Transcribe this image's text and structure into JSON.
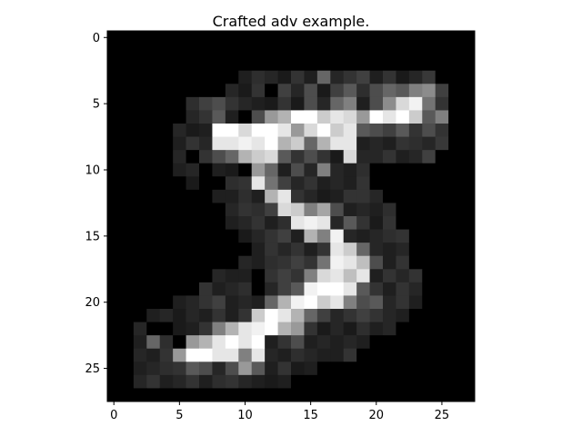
{
  "chart_data": {
    "type": "heatmap",
    "title": "Crafted adv example.",
    "xlabel": "",
    "ylabel": "",
    "colormap": "gray",
    "value_range": [
      0,
      1
    ],
    "xlim": [
      -0.5,
      27.5
    ],
    "ylim": [
      27.5,
      -0.5
    ],
    "x_ticks": [
      0,
      5,
      10,
      15,
      20,
      25
    ],
    "y_ticks": [
      0,
      5,
      10,
      15,
      20,
      25
    ],
    "grid": false,
    "values": [
      [
        0,
        0,
        0,
        0,
        0,
        0,
        0,
        0,
        0,
        0,
        0,
        0,
        0,
        0,
        0,
        0,
        0,
        0,
        0,
        0,
        0,
        0,
        0,
        0,
        0,
        0,
        0,
        0
      ],
      [
        0,
        0,
        0,
        0,
        0,
        0,
        0,
        0,
        0,
        0,
        0,
        0,
        0,
        0,
        0,
        0,
        0,
        0,
        0,
        0,
        0,
        0,
        0,
        0,
        0,
        0,
        0,
        0
      ],
      [
        0,
        0,
        0,
        0,
        0,
        0,
        0,
        0,
        0,
        0,
        0,
        0,
        0,
        0,
        0,
        0,
        0,
        0,
        0,
        0,
        0,
        0,
        0,
        0,
        0,
        0,
        0,
        0
      ],
      [
        0,
        0,
        0,
        0,
        0,
        0,
        0,
        0,
        0,
        0,
        0.12,
        0.18,
        0.15,
        0.1,
        0.2,
        0.12,
        0.4,
        0.15,
        0.2,
        0.25,
        0.12,
        0.2,
        0.1,
        0.15,
        0.22,
        0,
        0,
        0
      ],
      [
        0,
        0,
        0,
        0,
        0,
        0,
        0,
        0,
        0,
        0.15,
        0.1,
        0.2,
        0,
        0.25,
        0.15,
        0.3,
        0.1,
        0.25,
        0.35,
        0.18,
        0.3,
        0.4,
        0.35,
        0.5,
        0.55,
        0.25,
        0,
        0
      ],
      [
        0,
        0,
        0,
        0,
        0,
        0,
        0.18,
        0.25,
        0.3,
        0.2,
        0.15,
        0.12,
        0.1,
        0.2,
        0.1,
        0.3,
        0.15,
        0.4,
        0.5,
        0.12,
        0.3,
        0.55,
        0.85,
        0.95,
        0.45,
        0.2,
        0,
        0
      ],
      [
        0,
        0,
        0,
        0,
        0,
        0,
        0.15,
        0.2,
        0.35,
        0.12,
        0,
        0.3,
        0.6,
        0.7,
        1.0,
        1.0,
        0.8,
        0.9,
        0.85,
        0.6,
        1.0,
        0.9,
        1.0,
        0.8,
        0.35,
        0.5,
        0,
        0
      ],
      [
        0,
        0,
        0,
        0,
        0,
        0.15,
        0.1,
        0.12,
        1.0,
        1.0,
        0.85,
        1.0,
        1.0,
        0.9,
        0.6,
        0.85,
        1.0,
        0.8,
        0.9,
        0.35,
        0.3,
        0.25,
        0.35,
        0.2,
        0.3,
        0.2,
        0,
        0
      ],
      [
        0,
        0,
        0,
        0,
        0,
        0.12,
        0.2,
        0.15,
        0.9,
        0.9,
        0.95,
        0.9,
        1.0,
        0.7,
        0.8,
        0.4,
        0.7,
        0.9,
        0.9,
        0.12,
        0.15,
        0.12,
        0.2,
        0.18,
        0.15,
        0.22,
        0,
        0
      ],
      [
        0,
        0,
        0,
        0,
        0,
        0.15,
        0,
        0.2,
        0.3,
        0.4,
        0.7,
        0.8,
        0.85,
        0.35,
        0.2,
        0.3,
        0.2,
        0.1,
        0.85,
        0.15,
        0.15,
        0.2,
        0.12,
        0.15,
        0.25,
        0,
        0,
        0
      ],
      [
        0,
        0,
        0,
        0,
        0,
        0.12,
        0.15,
        0,
        0.12,
        0.1,
        0,
        0.6,
        0.4,
        0.12,
        0.3,
        0.15,
        0.5,
        0.15,
        0.12,
        0.18,
        0,
        0,
        0,
        0,
        0,
        0,
        0,
        0
      ],
      [
        0,
        0,
        0,
        0,
        0,
        0,
        0.1,
        0,
        0,
        0.18,
        0.2,
        0.9,
        0.45,
        0.25,
        0.15,
        0.2,
        0.12,
        0.15,
        0.12,
        0.2,
        0,
        0,
        0,
        0,
        0,
        0,
        0,
        0
      ],
      [
        0,
        0,
        0,
        0,
        0,
        0,
        0,
        0,
        0.12,
        0.12,
        0.18,
        0.12,
        0.7,
        0.9,
        0.2,
        0.15,
        0.1,
        0.12,
        0.2,
        0.2,
        0.15,
        0,
        0,
        0,
        0,
        0,
        0,
        0
      ],
      [
        0,
        0,
        0,
        0,
        0,
        0,
        0,
        0,
        0,
        0.15,
        0.2,
        0.18,
        0.25,
        0.85,
        0.8,
        0.5,
        0.65,
        0.3,
        0.12,
        0.15,
        0.12,
        0.18,
        0,
        0,
        0,
        0,
        0,
        0
      ],
      [
        0,
        0,
        0,
        0,
        0,
        0,
        0,
        0,
        0,
        0.12,
        0.15,
        0.2,
        0.12,
        0.18,
        0.9,
        0.95,
        0.9,
        0.15,
        0.35,
        0.2,
        0.1,
        0.2,
        0,
        0,
        0,
        0,
        0,
        0
      ],
      [
        0,
        0,
        0,
        0,
        0,
        0,
        0,
        0,
        0,
        0,
        0.1,
        0.15,
        0.2,
        0.25,
        0.12,
        0.7,
        0.5,
        0.95,
        0.15,
        0.12,
        0.15,
        0.18,
        0.2,
        0,
        0,
        0,
        0,
        0
      ],
      [
        0,
        0,
        0,
        0,
        0,
        0,
        0,
        0,
        0,
        0,
        0,
        0.12,
        0.2,
        0.15,
        0.2,
        0.12,
        0.2,
        0.9,
        0.8,
        0.4,
        0.15,
        0.12,
        0.15,
        0,
        0,
        0,
        0,
        0
      ],
      [
        0,
        0,
        0,
        0,
        0,
        0,
        0,
        0,
        0,
        0,
        0.15,
        0.12,
        0.18,
        0.2,
        0.25,
        0.2,
        0.45,
        0.95,
        0.9,
        0.75,
        0.3,
        0.12,
        0.2,
        0,
        0,
        0,
        0,
        0
      ],
      [
        0,
        0,
        0,
        0,
        0,
        0,
        0,
        0,
        0.15,
        0.12,
        0.12,
        0,
        0.2,
        0.25,
        0.2,
        0.5,
        0.85,
        0.9,
        0.75,
        0.9,
        0.12,
        0.2,
        0.15,
        0.2,
        0,
        0,
        0,
        0
      ],
      [
        0,
        0,
        0,
        0,
        0,
        0,
        0,
        0.2,
        0.12,
        0.15,
        0.18,
        0,
        0.15,
        0.25,
        0.35,
        0.95,
        1.0,
        1.0,
        0.9,
        0.35,
        0.2,
        0.12,
        0.2,
        0.15,
        0,
        0,
        0,
        0
      ],
      [
        0,
        0,
        0,
        0,
        0,
        0.12,
        0.15,
        0.2,
        0.25,
        0.12,
        0.15,
        0.12,
        0.4,
        0.7,
        0.95,
        1.0,
        0.8,
        0.9,
        0.5,
        0.3,
        0.35,
        0.15,
        0.2,
        0.12,
        0,
        0,
        0,
        0
      ],
      [
        0,
        0,
        0,
        0.12,
        0.15,
        0.1,
        0.15,
        0.12,
        0.2,
        0.12,
        0.2,
        0.8,
        1.0,
        0.9,
        0.7,
        0.4,
        0.25,
        0.15,
        0.2,
        0.25,
        0.2,
        0.15,
        0.12,
        0,
        0,
        0,
        0,
        0
      ],
      [
        0,
        0,
        0.15,
        0,
        0,
        0.1,
        0.12,
        0.2,
        0.5,
        0.7,
        0.9,
        0.95,
        1.0,
        0.7,
        0.6,
        0.2,
        0.1,
        0.15,
        0.1,
        0.18,
        0.12,
        0.15,
        0,
        0,
        0,
        0,
        0,
        0
      ],
      [
        0,
        0,
        0.12,
        0.4,
        0.18,
        0,
        0.6,
        0.7,
        0.9,
        1.0,
        0.9,
        1.0,
        0.12,
        0.2,
        0.3,
        0.12,
        0.15,
        0.12,
        0.15,
        0.12,
        0,
        0,
        0,
        0,
        0,
        0,
        0,
        0
      ],
      [
        0,
        0,
        0.15,
        0.12,
        0.2,
        0.6,
        1.0,
        1.0,
        0.9,
        0.9,
        0.5,
        0.9,
        0.15,
        0.12,
        0.18,
        0.15,
        0.12,
        0.12,
        0.2,
        0,
        0,
        0,
        0,
        0,
        0,
        0,
        0,
        0
      ],
      [
        0,
        0,
        0.12,
        0.15,
        0.18,
        0.2,
        0.35,
        0.3,
        0.15,
        0.3,
        0.6,
        0.35,
        0.12,
        0.2,
        0.1,
        0.12,
        0,
        0,
        0,
        0,
        0,
        0,
        0,
        0,
        0,
        0,
        0,
        0
      ],
      [
        0,
        0,
        0.15,
        0.2,
        0.12,
        0.15,
        0.2,
        0.12,
        0.18,
        0.2,
        0.15,
        0.12,
        0.1,
        0.12,
        0,
        0,
        0,
        0,
        0,
        0,
        0,
        0,
        0,
        0,
        0,
        0,
        0,
        0
      ],
      [
        0,
        0,
        0,
        0,
        0,
        0,
        0,
        0,
        0,
        0,
        0,
        0,
        0,
        0,
        0,
        0,
        0,
        0,
        0,
        0,
        0,
        0,
        0,
        0,
        0,
        0,
        0,
        0
      ]
    ]
  }
}
